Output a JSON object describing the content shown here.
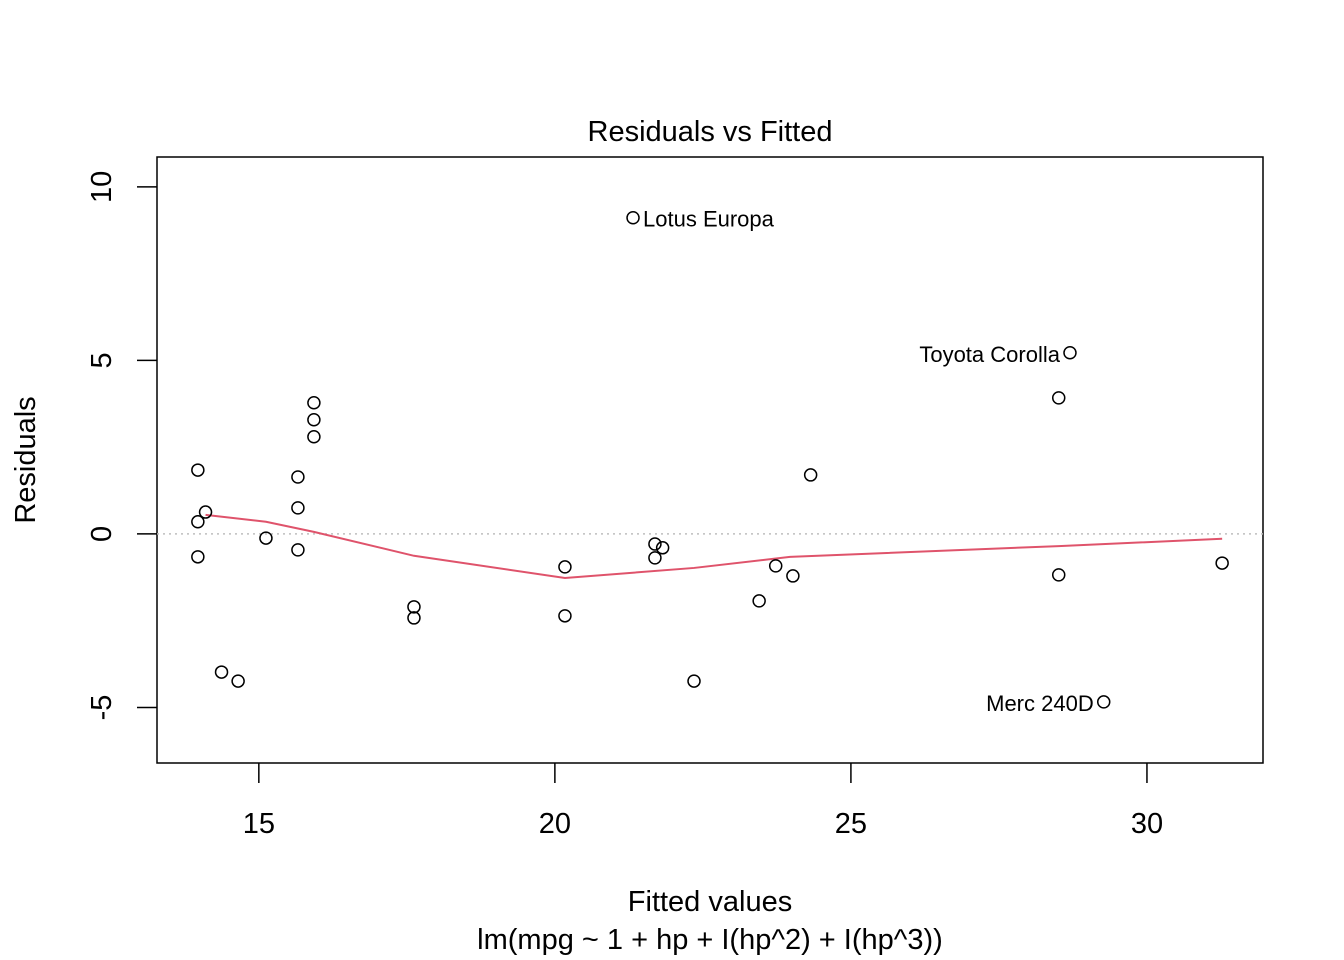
{
  "chart_data": {
    "type": "scatter",
    "title": "Residuals vs Fitted",
    "xlabel": "Fitted values",
    "subtitle": "lm(mpg ~ 1 + hp + I(hp^2) + I(hp^3))",
    "ylabel": "Residuals",
    "xlim": [
      13.28,
      31.96
    ],
    "ylim": [
      -6.6,
      10.86
    ],
    "xticks": [
      15,
      20,
      25,
      30
    ],
    "xtick_labels": [
      "15",
      "20",
      "25",
      "30"
    ],
    "yticks": [
      -5,
      0,
      5,
      10
    ],
    "ytick_labels": [
      "-5",
      "0",
      "5",
      "10"
    ],
    "grid": false,
    "reference_line": 0,
    "points": [
      {
        "x": 13.97,
        "y": 1.84
      },
      {
        "x": 13.97,
        "y": 0.35
      },
      {
        "x": 14.1,
        "y": 0.63
      },
      {
        "x": 13.97,
        "y": -0.66
      },
      {
        "x": 14.37,
        "y": -3.98
      },
      {
        "x": 14.65,
        "y": -4.24
      },
      {
        "x": 15.12,
        "y": -0.12
      },
      {
        "x": 15.66,
        "y": 1.64
      },
      {
        "x": 15.66,
        "y": 0.75
      },
      {
        "x": 15.66,
        "y": -0.46
      },
      {
        "x": 15.93,
        "y": 3.78
      },
      {
        "x": 15.93,
        "y": 3.29
      },
      {
        "x": 15.93,
        "y": 2.8
      },
      {
        "x": 17.62,
        "y": -2.1
      },
      {
        "x": 17.62,
        "y": -2.42
      },
      {
        "x": 20.17,
        "y": -0.95
      },
      {
        "x": 20.17,
        "y": -2.36
      },
      {
        "x": 21.32,
        "y": 9.11,
        "label": "Lotus Europa",
        "side": "right"
      },
      {
        "x": 21.69,
        "y": -0.29
      },
      {
        "x": 21.82,
        "y": -0.4
      },
      {
        "x": 21.69,
        "y": -0.69
      },
      {
        "x": 22.35,
        "y": -4.24
      },
      {
        "x": 23.45,
        "y": -1.93
      },
      {
        "x": 23.73,
        "y": -0.92
      },
      {
        "x": 24.02,
        "y": -1.21
      },
      {
        "x": 24.32,
        "y": 1.7
      },
      {
        "x": 28.51,
        "y": 3.92
      },
      {
        "x": 28.7,
        "y": 5.22,
        "label": "Toyota Corolla",
        "side": "left"
      },
      {
        "x": 28.51,
        "y": -1.18
      },
      {
        "x": 29.27,
        "y": -4.84,
        "label": "Merc 240D",
        "side": "left"
      },
      {
        "x": 31.27,
        "y": -0.84
      }
    ],
    "smooth": {
      "color": "#DF536B",
      "x": [
        14.1,
        15.12,
        15.93,
        17.62,
        20.17,
        22.35,
        23.97,
        28.51,
        31.27
      ],
      "y": [
        0.55,
        0.35,
        0.06,
        -0.63,
        -1.27,
        -0.98,
        -0.66,
        -0.35,
        -0.14
      ]
    }
  }
}
